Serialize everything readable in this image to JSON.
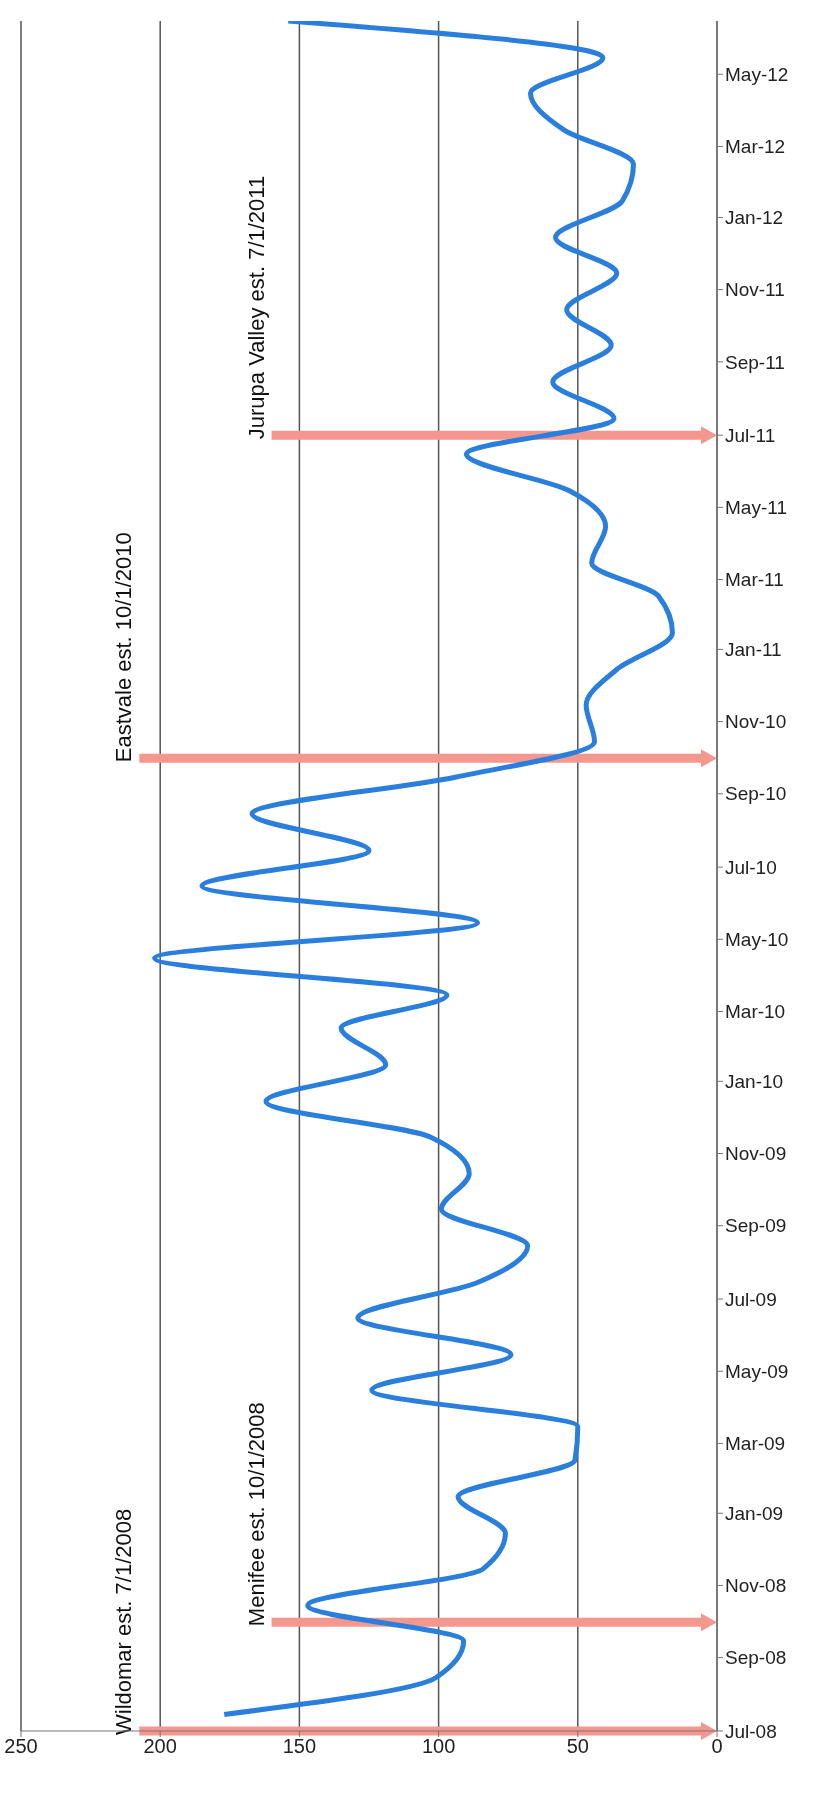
{
  "chart_data": {
    "type": "line",
    "orientation": "horizontal",
    "x": [
      "2008-07-15",
      "2008-08-15",
      "2008-09-15",
      "2008-10-15",
      "2008-11-15",
      "2008-12-15",
      "2009-01-15",
      "2009-02-15",
      "2009-03-15",
      "2009-04-15",
      "2009-05-15",
      "2009-06-15",
      "2009-07-15",
      "2009-08-15",
      "2009-09-15",
      "2009-10-15",
      "2009-11-15",
      "2009-12-15",
      "2010-01-15",
      "2010-02-15",
      "2010-03-15",
      "2010-04-15",
      "2010-05-15",
      "2010-06-15",
      "2010-07-15",
      "2010-08-15",
      "2010-09-15",
      "2010-10-15",
      "2010-11-15",
      "2010-12-15",
      "2011-01-15",
      "2011-02-15",
      "2011-03-15",
      "2011-04-15",
      "2011-05-15",
      "2011-06-15",
      "2011-07-15",
      "2011-08-15",
      "2011-09-15",
      "2011-10-15",
      "2011-11-15",
      "2011-12-15",
      "2012-01-15",
      "2012-02-15",
      "2012-03-15",
      "2012-04-15",
      "2012-05-15",
      "2012-06-15"
    ],
    "series": [
      {
        "color": "#2a7fdc",
        "values": [
          177,
          101,
          91,
          147,
          84,
          76,
          93,
          51,
          50,
          124,
          74,
          129,
          86,
          68,
          99,
          89,
          103,
          162,
          119,
          135,
          97,
          202,
          86,
          185,
          125,
          167,
          94,
          44,
          47,
          36,
          16,
          21,
          45,
          40,
          53,
          90,
          37,
          59,
          38,
          54,
          36,
          58,
          34,
          30,
          55,
          67,
          41,
          154
        ]
      }
    ],
    "ylim": [
      "2008-07-01",
      "2012-06-15"
    ],
    "yticks": [
      {
        "value": "2008-07-01",
        "label": "Jul-08"
      },
      {
        "value": "2008-09-01",
        "label": "Sep-08"
      },
      {
        "value": "2008-11-01",
        "label": "Nov-08"
      },
      {
        "value": "2009-01-01",
        "label": "Jan-09"
      },
      {
        "value": "2009-03-01",
        "label": "Mar-09"
      },
      {
        "value": "2009-05-01",
        "label": "May-09"
      },
      {
        "value": "2009-07-01",
        "label": "Jul-09"
      },
      {
        "value": "2009-09-01",
        "label": "Sep-09"
      },
      {
        "value": "2009-11-01",
        "label": "Nov-09"
      },
      {
        "value": "2010-01-01",
        "label": "Jan-10"
      },
      {
        "value": "2010-03-01",
        "label": "Mar-10"
      },
      {
        "value": "2010-05-01",
        "label": "May-10"
      },
      {
        "value": "2010-07-01",
        "label": "Jul-10"
      },
      {
        "value": "2010-09-01",
        "label": "Sep-10"
      },
      {
        "value": "2010-11-01",
        "label": "Nov-10"
      },
      {
        "value": "2011-01-01",
        "label": "Jan-11"
      },
      {
        "value": "2011-03-01",
        "label": "Mar-11"
      },
      {
        "value": "2011-05-01",
        "label": "May-11"
      },
      {
        "value": "2011-07-01",
        "label": "Jul-11"
      },
      {
        "value": "2011-09-01",
        "label": "Sep-11"
      },
      {
        "value": "2011-11-01",
        "label": "Nov-11"
      },
      {
        "value": "2012-01-01",
        "label": "Jan-12"
      },
      {
        "value": "2012-03-01",
        "label": "Mar-12"
      },
      {
        "value": "2012-05-01",
        "label": "May-12"
      }
    ],
    "xlim": [
      250,
      0
    ],
    "xticks": [
      250,
      200,
      150,
      100,
      50,
      0
    ],
    "grid": "x",
    "legend": false,
    "marker": "none",
    "ref_lines": [
      {
        "axis": "y",
        "value": "2008-07-01",
        "label": "Wildomar est. 7/1/2008",
        "color": "#f4978e"
      },
      {
        "axis": "y",
        "value": "2008-10-01",
        "label": "Menifee est. 10/1/2008",
        "color": "#f4978e"
      },
      {
        "axis": "y",
        "value": "2010-10-01",
        "label": "Eastvale est. 10/1/2010",
        "color": "#f4978e"
      },
      {
        "axis": "y",
        "value": "2011-07-01",
        "label": "Jurupa Valley est. 7/1/2011",
        "color": "#f4978e"
      }
    ]
  }
}
